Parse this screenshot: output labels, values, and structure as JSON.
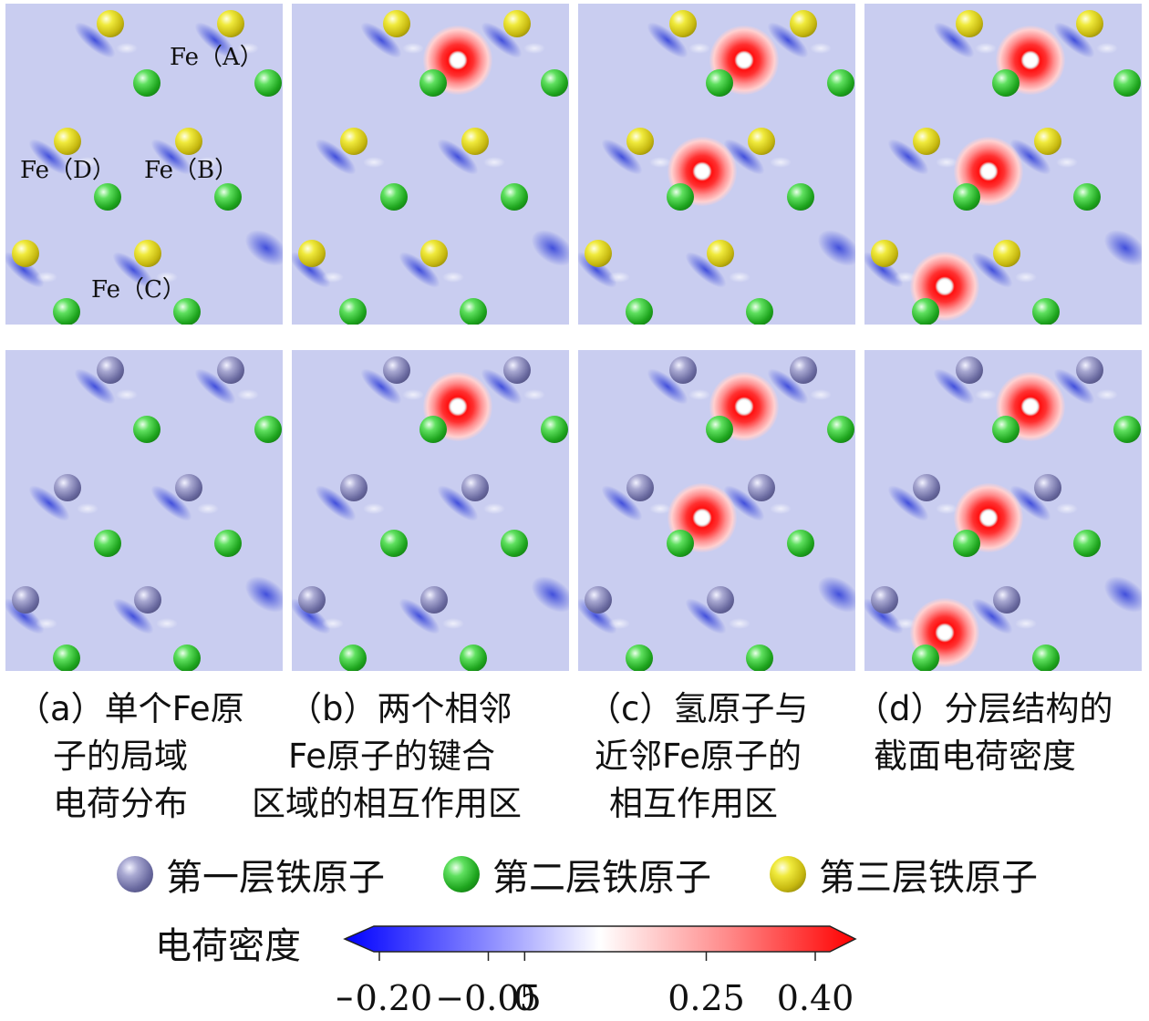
{
  "panels": [
    {
      "id": "a",
      "caption": [
        "（a）单个Fe原",
        "子的局域",
        "电荷分布"
      ],
      "hydrogen_count": 0,
      "atom_labels": [
        "Fe（A）",
        "Fe（B）",
        "Fe（C）",
        "Fe（D）"
      ]
    },
    {
      "id": "b",
      "caption": [
        "（b）两个相邻",
        "Fe原子的键合",
        "区域的相互作用区"
      ],
      "hydrogen_count": 1
    },
    {
      "id": "c",
      "caption": [
        "（c）氢原子与",
        "近邻Fe原子的",
        "相互作用区"
      ],
      "hydrogen_count": 2
    },
    {
      "id": "d",
      "caption": [
        "（d）分层结构的",
        "截面电荷密度"
      ],
      "hydrogen_count": 3
    }
  ],
  "rows": [
    {
      "row": "top",
      "upper_layer": "第三层铁原子"
    },
    {
      "row": "bottom",
      "upper_layer": "第一层铁原子"
    }
  ],
  "legend": [
    {
      "name": "第一层铁原子",
      "icon": "layer1-atom-icon",
      "color": "#6a6aa0"
    },
    {
      "name": "第二层铁原子",
      "icon": "layer2-atom-icon",
      "color": "#1ea51e"
    },
    {
      "name": "第三层铁原子",
      "icon": "layer3-atom-icon",
      "color": "#c6b810"
    }
  ],
  "colorbar": {
    "title": "电荷密度",
    "ticks": [
      {
        "value": -0.2,
        "label": "−0.20"
      },
      {
        "value": -0.05,
        "label": "−0.05"
      },
      {
        "value": 0,
        "label": "0"
      },
      {
        "value": 0.25,
        "label": "0.25"
      },
      {
        "value": 0.4,
        "label": "0.40"
      }
    ],
    "colors": {
      "negative": "#0000ff",
      "zero": "#ffffff",
      "positive": "#ff0000"
    }
  }
}
